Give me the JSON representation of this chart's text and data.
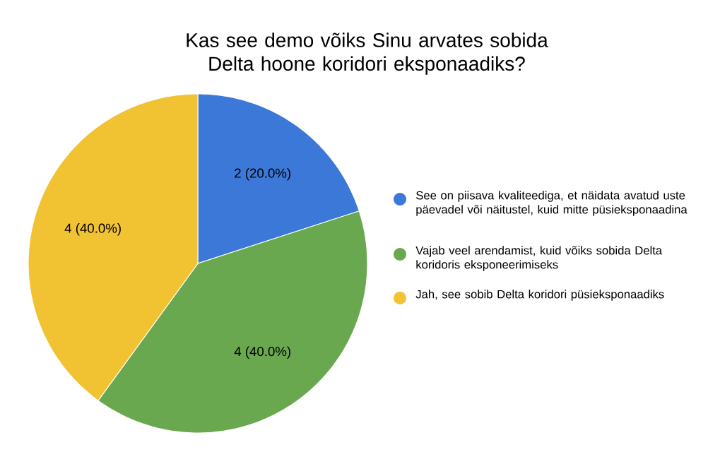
{
  "chart_data": {
    "type": "pie",
    "title": "Kas see demo võiks Sinu arvates sobida Delta hoone koridori eksponaadiks?",
    "categories": [
      "See on piisava kvaliteediga, et näidata avatud uste päevadel või näitustel, kuid mitte püsieksponaadina",
      "Vajab veel arendamist, kuid võiks sobida Delta koridoris eksponeerimiseks",
      "Jah, see sobib Delta koridori püsieksponaadiks"
    ],
    "values": [
      2,
      4,
      4
    ],
    "colors": [
      "#3c78d8",
      "#6aa84f",
      "#f1c232"
    ],
    "value_labels": [
      "2 (20.0%)",
      "4 (40.0%)",
      "4 (40.0%)"
    ],
    "legend": "right"
  }
}
